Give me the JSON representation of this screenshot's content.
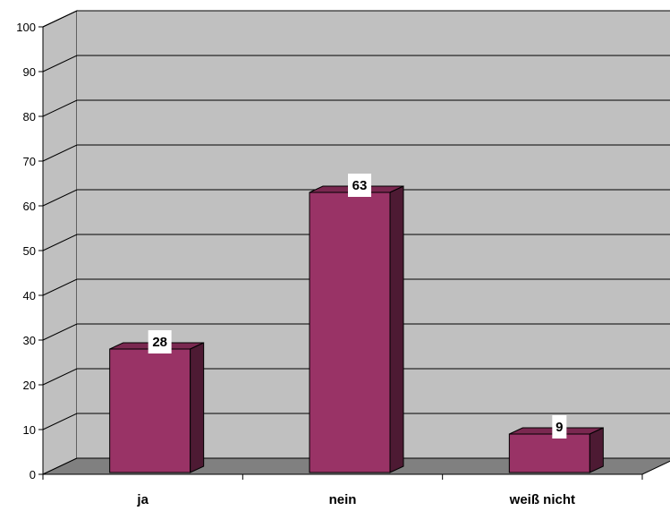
{
  "chart_data": {
    "type": "bar",
    "categories": [
      "ja",
      "nein",
      "weiß nicht"
    ],
    "values": [
      28,
      63,
      9
    ],
    "ylim": [
      0,
      100
    ],
    "yticks": [
      0,
      10,
      20,
      30,
      40,
      50,
      60,
      70,
      80,
      90,
      100
    ],
    "grid": true,
    "three_d": true,
    "colors": {
      "bar_front": "#993366",
      "bar_top": "#7a2850",
      "bar_side": "#4d1a33",
      "wall": "#c0c0c0",
      "floor": "#808080",
      "label_bg": "#ffffff"
    }
  }
}
